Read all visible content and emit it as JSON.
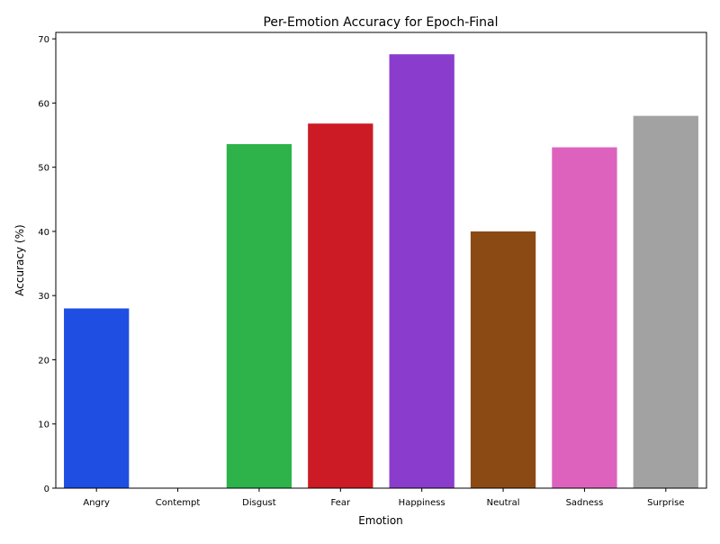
{
  "chart_data": {
    "type": "bar",
    "title": "Per-Emotion Accuracy for Epoch-Final",
    "xlabel": "Emotion",
    "ylabel": "Accuracy (%)",
    "categories": [
      "Angry",
      "Contempt",
      "Disgust",
      "Fear",
      "Happiness",
      "Neutral",
      "Sadness",
      "Surprise"
    ],
    "values": [
      28.0,
      0.0,
      53.6,
      56.8,
      67.6,
      40.0,
      53.1,
      58.0
    ],
    "colors": [
      "#1f4ee3",
      "#ff7c00",
      "#2db34a",
      "#cc1b24",
      "#8a3dcc",
      "#8b4a14",
      "#dd62bd",
      "#a2a2a2"
    ],
    "ylim": [
      0,
      71
    ],
    "yticks": [
      0,
      10,
      20,
      30,
      40,
      50,
      60,
      70
    ],
    "grid": false,
    "legend": "none"
  }
}
